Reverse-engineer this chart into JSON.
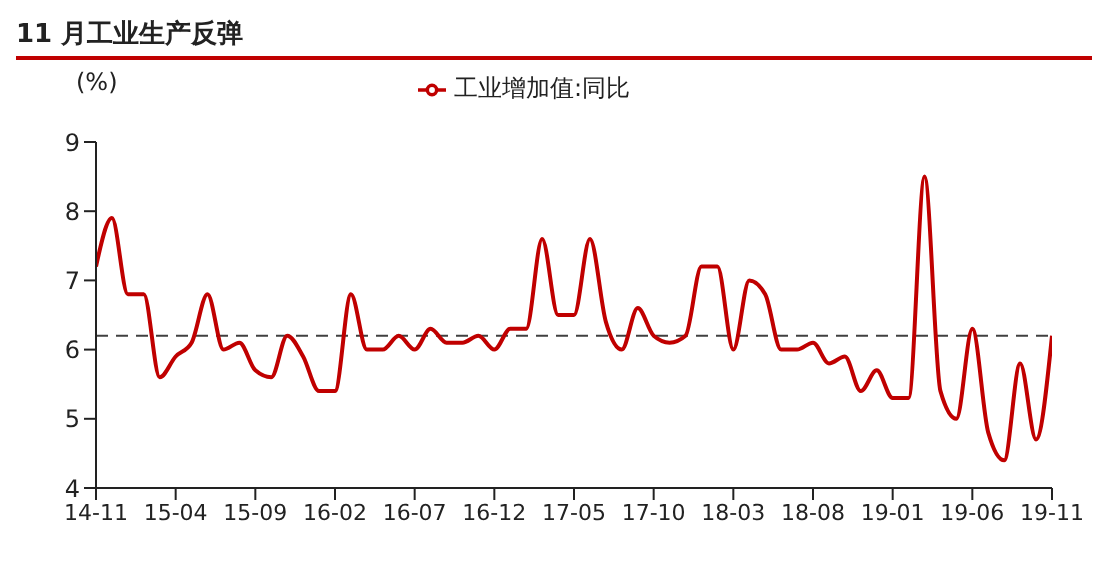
{
  "chart_data": {
    "type": "line",
    "title": "11 月工业生产反弹",
    "ylabel": "(%)",
    "categories": [
      "14-11",
      null,
      null,
      null,
      null,
      "15-04",
      null,
      null,
      null,
      null,
      "15-09",
      null,
      null,
      null,
      null,
      "16-02",
      null,
      null,
      null,
      null,
      "16-07",
      null,
      null,
      null,
      null,
      "16-12",
      null,
      null,
      null,
      null,
      "17-05",
      null,
      null,
      null,
      null,
      "17-10",
      null,
      null,
      null,
      null,
      "18-03",
      null,
      null,
      null,
      null,
      "18-08",
      null,
      null,
      null,
      null,
      "19-01",
      null,
      null,
      null,
      null,
      "19-06",
      null,
      null,
      null,
      null,
      "19-11"
    ],
    "series": [
      {
        "name": "工业增加值:同比",
        "color": "#c00000",
        "values": [
          7.2,
          7.9,
          6.8,
          6.8,
          5.6,
          5.9,
          6.1,
          6.8,
          6.0,
          6.1,
          5.7,
          5.6,
          6.2,
          5.9,
          5.4,
          5.4,
          6.8,
          6.0,
          6.0,
          6.2,
          6.0,
          6.3,
          6.1,
          6.1,
          6.2,
          6.0,
          6.3,
          6.3,
          7.6,
          6.5,
          6.5,
          7.6,
          6.4,
          6.0,
          6.6,
          6.2,
          6.1,
          6.2,
          7.2,
          7.2,
          6.0,
          7.0,
          6.8,
          6.0,
          6.0,
          6.1,
          5.8,
          5.9,
          5.4,
          5.7,
          5.3,
          5.3,
          8.5,
          5.4,
          5.0,
          6.3,
          4.8,
          4.4,
          5.8,
          4.7,
          6.2
        ]
      }
    ],
    "ylim": [
      4,
      9
    ],
    "yticks": [
      4,
      5,
      6,
      7,
      8,
      9
    ],
    "ref_lines": [
      {
        "axis": "y",
        "value": 6.2,
        "color": "#404040",
        "line_style": "dashed"
      }
    ],
    "legend": "top",
    "grid": false,
    "marker": "none",
    "line_style": "solid"
  }
}
